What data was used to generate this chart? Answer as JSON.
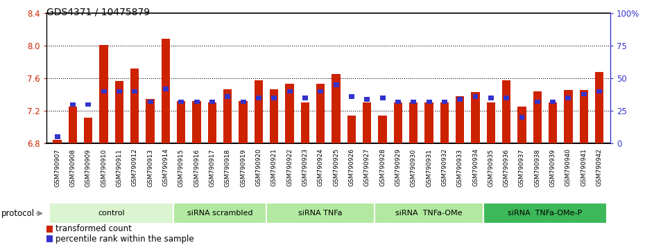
{
  "title": "GDS4371 / 10475879",
  "samples": [
    "GSM790907",
    "GSM790908",
    "GSM790909",
    "GSM790910",
    "GSM790911",
    "GSM790912",
    "GSM790913",
    "GSM790914",
    "GSM790915",
    "GSM790916",
    "GSM790917",
    "GSM790918",
    "GSM790919",
    "GSM790920",
    "GSM790921",
    "GSM790922",
    "GSM790923",
    "GSM790924",
    "GSM790925",
    "GSM790926",
    "GSM790927",
    "GSM790928",
    "GSM790929",
    "GSM790930",
    "GSM790931",
    "GSM790932",
    "GSM790933",
    "GSM790934",
    "GSM790935",
    "GSM790936",
    "GSM790937",
    "GSM790938",
    "GSM790939",
    "GSM790940",
    "GSM790941",
    "GSM790942"
  ],
  "red_values": [
    6.84,
    7.25,
    7.12,
    8.01,
    7.57,
    7.72,
    7.35,
    8.09,
    7.32,
    7.32,
    7.3,
    7.47,
    7.32,
    7.58,
    7.47,
    7.53,
    7.3,
    7.53,
    7.65,
    7.14,
    7.3,
    7.14,
    7.3,
    7.3,
    7.3,
    7.3,
    7.38,
    7.43,
    7.3,
    7.58,
    7.25,
    7.44,
    7.3,
    7.46,
    7.46,
    7.68
  ],
  "blue_values_pct": [
    5,
    30,
    30,
    40,
    40,
    40,
    32,
    42,
    32,
    32,
    32,
    36,
    32,
    35,
    35,
    40,
    35,
    40,
    45,
    36,
    34,
    35,
    32,
    32,
    32,
    32,
    34,
    36,
    35,
    35,
    20,
    32,
    32,
    35,
    38,
    40
  ],
  "ylim_left": [
    6.8,
    8.4
  ],
  "ylim_right": [
    0,
    100
  ],
  "yticks_left": [
    6.8,
    7.2,
    7.6,
    8.0,
    8.4
  ],
  "yticks_right": [
    0,
    25,
    50,
    75,
    100
  ],
  "ytick_labels_right": [
    "0",
    "25",
    "50",
    "75",
    "100%"
  ],
  "groups": [
    {
      "label": "control",
      "start": 0,
      "end": 8,
      "color": "#daf5d0"
    },
    {
      "label": "siRNA scrambled",
      "start": 8,
      "end": 14,
      "color": "#b2e8a0"
    },
    {
      "label": "siRNA TNFa",
      "start": 14,
      "end": 21,
      "color": "#b2e8a0"
    },
    {
      "label": "siRNA  TNFa-OMe",
      "start": 21,
      "end": 28,
      "color": "#b2e8a0"
    },
    {
      "label": "siRNA  TNFa-OMe-P",
      "start": 28,
      "end": 36,
      "color": "#3cb858"
    }
  ],
  "red_color": "#cc2200",
  "blue_color": "#3333cc",
  "bar_width": 0.55,
  "protocol_label": "protocol",
  "legend_items": [
    {
      "label": "transformed count",
      "color": "#cc2200"
    },
    {
      "label": "percentile rank within the sample",
      "color": "#3333cc"
    }
  ],
  "xtick_bg_color": "#c8c8c8",
  "grid_dotted_at": [
    7.2,
    7.6,
    8.0
  ]
}
